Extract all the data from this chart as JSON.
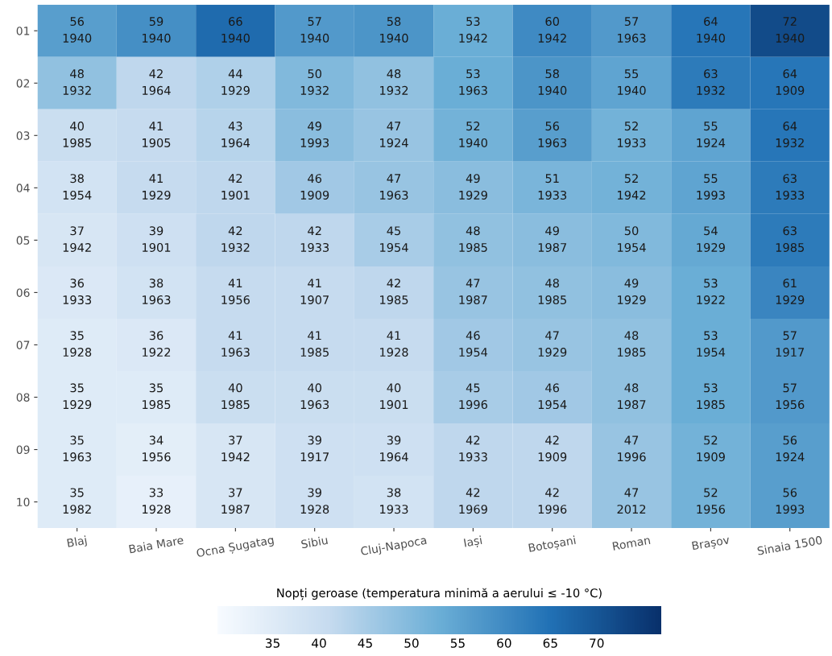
{
  "chart_data": {
    "type": "heatmap",
    "categories": [
      "Blaj",
      "Baia Mare",
      "Ocna Șugatag",
      "Sibiu",
      "Cluj-Napoca",
      "Iași",
      "Botoșani",
      "Roman",
      "Brașov",
      "Sinaia 1500"
    ],
    "y_categories": [
      "01",
      "02",
      "03",
      "04",
      "05",
      "06",
      "07",
      "08",
      "09",
      "10"
    ],
    "cells": [
      [
        56,
        59,
        66,
        57,
        58,
        53,
        60,
        57,
        64,
        72
      ],
      [
        48,
        42,
        44,
        50,
        48,
        53,
        58,
        55,
        63,
        64
      ],
      [
        40,
        41,
        43,
        49,
        47,
        52,
        56,
        52,
        55,
        64
      ],
      [
        38,
        41,
        42,
        46,
        47,
        49,
        51,
        52,
        55,
        63
      ],
      [
        37,
        39,
        42,
        42,
        45,
        48,
        49,
        50,
        54,
        63
      ],
      [
        36,
        38,
        41,
        41,
        42,
        47,
        48,
        49,
        53,
        61
      ],
      [
        35,
        36,
        41,
        41,
        41,
        46,
        47,
        48,
        53,
        57
      ],
      [
        35,
        35,
        40,
        40,
        40,
        45,
        46,
        48,
        53,
        57
      ],
      [
        35,
        34,
        37,
        39,
        39,
        42,
        42,
        47,
        52,
        56
      ],
      [
        35,
        33,
        37,
        39,
        38,
        42,
        42,
        47,
        52,
        56
      ]
    ],
    "cell_labels": [
      [
        "56\n1940",
        "59\n1940",
        "66\n1940",
        "57\n1940",
        "58\n1940",
        "53\n1942",
        "60\n1942",
        "57\n1963",
        "64\n1940",
        "72\n1940"
      ],
      [
        "48\n1932",
        "42\n1964",
        "44\n1929",
        "50\n1932",
        "48\n1932",
        "53\n1963",
        "58\n1940",
        "55\n1940",
        "63\n1932",
        "64\n1909"
      ],
      [
        "40\n1985",
        "41\n1905",
        "43\n1964",
        "49\n1993",
        "47\n1924",
        "52\n1940",
        "56\n1963",
        "52\n1933",
        "55\n1924",
        "64\n1932"
      ],
      [
        "38\n1954",
        "41\n1929",
        "42\n1901",
        "46\n1909",
        "47\n1963",
        "49\n1929",
        "51\n1933",
        "52\n1942",
        "55\n1993",
        "63\n1933"
      ],
      [
        "37\n1942",
        "39\n1901",
        "42\n1932",
        "42\n1933",
        "45\n1954",
        "48\n1985",
        "49\n1987",
        "50\n1954",
        "54\n1929",
        "63\n1985"
      ],
      [
        "36\n1933",
        "38\n1963",
        "41\n1956",
        "41\n1907",
        "42\n1985",
        "47\n1987",
        "48\n1985",
        "49\n1929",
        "53\n1922",
        "61\n1929"
      ],
      [
        "35\n1928",
        "36\n1922",
        "41\n1963",
        "41\n1985",
        "41\n1928",
        "46\n1954",
        "47\n1929",
        "48\n1985",
        "53\n1954",
        "57\n1917"
      ],
      [
        "35\n1929",
        "35\n1985",
        "40\n1985",
        "40\n1963",
        "40\n1901",
        "45\n1996",
        "46\n1954",
        "48\n1987",
        "53\n1985",
        "57\n1956"
      ],
      [
        "35\n1963",
        "34\n1956",
        "37\n1942",
        "39\n1917",
        "39\n1964",
        "42\n1933",
        "42\n1909",
        "47\n1996",
        "52\n1909",
        "56\n1924"
      ],
      [
        "35\n1982",
        "33\n1928",
        "37\n1987",
        "39\n1928",
        "38\n1933",
        "42\n1969",
        "42\n1996",
        "47\n2012",
        "52\n1956",
        "56\n1993"
      ]
    ],
    "clabel": "Nopți geroase (temperatura minimă a aerului ≤ -10 °C)",
    "clim": [
      29,
      77
    ],
    "cticks": [
      35,
      40,
      45,
      50,
      55,
      60,
      65,
      70
    ]
  }
}
